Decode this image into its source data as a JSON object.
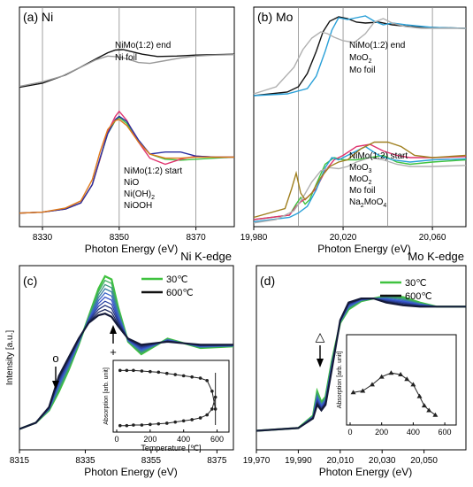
{
  "chart_data": [
    {
      "id": "a",
      "type": "line",
      "panel_label": "(a) Ni",
      "xlabel": "Photon Energy (eV)",
      "ticks": [
        "8330",
        "8350",
        "8370"
      ],
      "xlim": [
        8324,
        8380
      ],
      "upper_legend": [
        {
          "text": "NiMo(1:2) end",
          "color": "#111111"
        },
        {
          "text": "Ni foil",
          "color": "#9a9a9a"
        }
      ],
      "lower_legend": [
        {
          "text": "NiMo(1:2) start",
          "color": "#3fc23f"
        },
        {
          "text": "NiO",
          "color": "#e0336e"
        },
        {
          "text": "Ni(OH)",
          "sub": "2",
          "color": "#2b2fa0"
        },
        {
          "text": "NiOOH",
          "color": "#e07a1a"
        }
      ],
      "gridlines": [
        8330,
        8350,
        8370
      ],
      "series": [
        {
          "color": "#111111",
          "x": [
            8324,
            8330,
            8336,
            8340,
            8344,
            8347,
            8349,
            8351,
            8353,
            8356,
            8360,
            8365,
            8370,
            8375,
            8380
          ],
          "y": [
            0.18,
            0.27,
            0.45,
            0.62,
            0.8,
            0.93,
            0.99,
            1.0,
            0.96,
            0.9,
            0.85,
            0.86,
            0.88,
            0.89,
            0.9
          ]
        },
        {
          "color": "#9a9a9a",
          "x": [
            8324,
            8330,
            8335,
            8338,
            8341,
            8344,
            8347,
            8350,
            8352,
            8355,
            8358,
            8362,
            8366,
            8370,
            8375,
            8380
          ],
          "y": [
            0.2,
            0.3,
            0.42,
            0.54,
            0.66,
            0.78,
            0.86,
            0.84,
            0.8,
            0.72,
            0.7,
            0.76,
            0.82,
            0.86,
            0.88,
            0.89
          ]
        },
        {
          "color": "#3fc23f",
          "x": [
            8324,
            8330,
            8336,
            8340,
            8343,
            8345,
            8347,
            8349,
            8350,
            8352,
            8355,
            8358,
            8362,
            8366,
            8370,
            8375,
            8380
          ],
          "y": [
            0.02,
            0.03,
            0.06,
            0.12,
            0.3,
            0.55,
            0.8,
            0.93,
            0.96,
            0.9,
            0.72,
            0.6,
            0.55,
            0.54,
            0.55,
            0.56,
            0.57
          ]
        },
        {
          "color": "#e0336e",
          "x": [
            8324,
            8330,
            8336,
            8340,
            8343,
            8345,
            8347,
            8349,
            8350,
            8352,
            8355,
            8358,
            8362,
            8366,
            8370,
            8375,
            8380
          ],
          "y": [
            0.02,
            0.03,
            0.06,
            0.12,
            0.3,
            0.55,
            0.82,
            0.97,
            1.02,
            0.93,
            0.72,
            0.56,
            0.5,
            0.55,
            0.58,
            0.57,
            0.57
          ]
        },
        {
          "color": "#2b2fa0",
          "x": [
            8324,
            8330,
            8336,
            8340,
            8343,
            8345,
            8347,
            8349,
            8350,
            8352,
            8355,
            8358,
            8362,
            8366,
            8370,
            8375,
            8380
          ],
          "y": [
            0.02,
            0.03,
            0.06,
            0.12,
            0.3,
            0.56,
            0.8,
            0.94,
            0.97,
            0.92,
            0.74,
            0.6,
            0.62,
            0.62,
            0.58,
            0.57,
            0.57
          ]
        },
        {
          "color": "#e07a1a",
          "x": [
            8324,
            8330,
            8336,
            8340,
            8343,
            8345,
            8347,
            8349,
            8350,
            8352,
            8355,
            8358,
            8362,
            8366,
            8370,
            8375,
            8380
          ],
          "y": [
            0.02,
            0.03,
            0.07,
            0.14,
            0.35,
            0.62,
            0.84,
            0.93,
            0.94,
            0.88,
            0.72,
            0.6,
            0.56,
            0.56,
            0.57,
            0.57,
            0.57
          ]
        }
      ]
    },
    {
      "id": "b",
      "type": "line",
      "panel_label": "(b) Mo",
      "xlabel": "Photon Energy (eV)",
      "ticks": [
        "19,980",
        "20,020",
        "20,060"
      ],
      "xlim": [
        19980,
        20075
      ],
      "upper_legend": [
        {
          "text": "NiMo(1:2) end",
          "color": "#111111"
        },
        {
          "text": "MoO",
          "sub": "2",
          "color": "#2aa0d8"
        },
        {
          "text": "Mo foil",
          "color": "#b0b0b0"
        }
      ],
      "lower_legend": [
        {
          "text": "NiMo(1:2) start",
          "color": "#3fc23f"
        },
        {
          "text": "MoO",
          "sub": "3",
          "color": "#e0336e"
        },
        {
          "text": "MoO",
          "sub": "2",
          "color": "#2aa0d8"
        },
        {
          "text": "Mo foil",
          "color": "#b0b0b0"
        },
        {
          "text": "Na",
          "sub": "2",
          "tail": "MoO",
          "sub2": "4",
          "color": "#a08020"
        }
      ],
      "gridlines": [
        20000,
        20020,
        20040,
        20060
      ],
      "series": [
        {
          "color": "#111111",
          "x": [
            19980,
            19995,
            20000,
            20004,
            20008,
            20011,
            20014,
            20018,
            20022,
            20026,
            20030,
            20036,
            20042,
            20050,
            20060,
            20075
          ],
          "y": [
            0.1,
            0.14,
            0.2,
            0.35,
            0.6,
            0.82,
            0.94,
            0.99,
            0.97,
            0.93,
            0.92,
            0.93,
            0.9,
            0.88,
            0.87,
            0.86
          ]
        },
        {
          "color": "#2aa0d8",
          "x": [
            19980,
            19995,
            20004,
            20008,
            20012,
            20015,
            20018,
            20022,
            20026,
            20030,
            20034,
            20038,
            20042,
            20048,
            20060,
            20075
          ],
          "y": [
            0.1,
            0.12,
            0.18,
            0.32,
            0.6,
            0.84,
            0.98,
            0.96,
            0.98,
            1.0,
            0.94,
            0.9,
            0.92,
            0.9,
            0.87,
            0.86
          ]
        },
        {
          "color": "#b0b0b0",
          "x": [
            19980,
            19990,
            19998,
            20002,
            20006,
            20010,
            20013,
            20016,
            20020,
            20025,
            20030,
            20034,
            20038,
            20042,
            20048,
            20055,
            20065,
            20075
          ],
          "y": [
            0.12,
            0.2,
            0.42,
            0.62,
            0.75,
            0.82,
            0.8,
            0.76,
            0.72,
            0.7,
            0.8,
            0.93,
            0.97,
            0.92,
            0.88,
            0.86,
            0.86,
            0.86
          ]
        },
        {
          "color": "#3fc23f",
          "x": [
            19980,
            19996,
            19999,
            20001,
            20003,
            20005,
            20008,
            20012,
            20016,
            20020,
            20026,
            20032,
            20038,
            20044,
            20050,
            20060,
            20075
          ],
          "y": [
            0.08,
            0.12,
            0.22,
            0.28,
            0.22,
            0.26,
            0.4,
            0.58,
            0.64,
            0.62,
            0.62,
            0.64,
            0.66,
            0.6,
            0.58,
            0.6,
            0.62
          ]
        },
        {
          "color": "#e0336e",
          "x": [
            19980,
            19996,
            19999,
            20001,
            20004,
            20008,
            20012,
            20016,
            20020,
            20026,
            20032,
            20038,
            20044,
            20050,
            20060,
            20075
          ],
          "y": [
            0.08,
            0.12,
            0.2,
            0.24,
            0.28,
            0.36,
            0.52,
            0.62,
            0.66,
            0.74,
            0.76,
            0.7,
            0.66,
            0.64,
            0.64,
            0.65
          ]
        },
        {
          "color": "#2aa0d8",
          "x": [
            19980,
            19996,
            20000,
            20004,
            20008,
            20012,
            20015,
            20018,
            20022,
            20026,
            20030,
            20036,
            20042,
            20050,
            20060,
            20075
          ],
          "y": [
            0.06,
            0.1,
            0.14,
            0.2,
            0.35,
            0.55,
            0.64,
            0.62,
            0.66,
            0.7,
            0.74,
            0.66,
            0.62,
            0.6,
            0.62,
            0.63
          ]
        },
        {
          "color": "#b0b0b0",
          "x": [
            19980,
            19990,
            19998,
            20002,
            20006,
            20010,
            20014,
            20018,
            20022,
            20026,
            20032,
            20038,
            20044,
            20050,
            20060,
            20075
          ],
          "y": [
            0.05,
            0.08,
            0.16,
            0.28,
            0.42,
            0.52,
            0.55,
            0.54,
            0.56,
            0.6,
            0.64,
            0.62,
            0.58,
            0.56,
            0.56,
            0.57
          ]
        },
        {
          "color": "#a08020",
          "x": [
            19980,
            19994,
            19997,
            19999,
            20001,
            20003,
            20006,
            20010,
            20014,
            20018,
            20022,
            20028,
            20034,
            20040,
            20046,
            20052,
            20060,
            20075
          ],
          "y": [
            0.1,
            0.18,
            0.36,
            0.5,
            0.32,
            0.26,
            0.32,
            0.46,
            0.56,
            0.6,
            0.62,
            0.72,
            0.78,
            0.78,
            0.74,
            0.66,
            0.64,
            0.66
          ]
        }
      ]
    },
    {
      "id": "c",
      "type": "line",
      "panel_label": "(c)",
      "edge_title": "Ni K-edge",
      "xlabel": "Photon Energy (eV)",
      "ylabel": "Intensity [a.u.]",
      "ticks": [
        "8315",
        "8335",
        "8355",
        "8375"
      ],
      "xlim": [
        8315,
        8380
      ],
      "legend": [
        {
          "text": "30℃",
          "color": "#3fc23f"
        },
        {
          "text": "600℃",
          "color": "#111111"
        }
      ],
      "markers": {
        "o": "o",
        "plus": "+"
      },
      "series_start": {
        "x": [
          8315,
          8320,
          8324,
          8327,
          8330,
          8333,
          8336,
          8339,
          8341,
          8343,
          8345,
          8348,
          8352,
          8356,
          8360,
          8365,
          8370,
          8380
        ],
        "y": [
          0.02,
          0.06,
          0.14,
          0.26,
          0.4,
          0.56,
          0.74,
          0.92,
          1.0,
          0.98,
          0.8,
          0.58,
          0.5,
          0.55,
          0.6,
          0.57,
          0.54,
          0.55
        ]
      },
      "series_end": {
        "x": [
          8315,
          8320,
          8324,
          8327,
          8330,
          8333,
          8336,
          8339,
          8341,
          8343,
          8345,
          8348,
          8352,
          8356,
          8360,
          8365,
          8370,
          8380
        ],
        "y": [
          0.02,
          0.06,
          0.16,
          0.36,
          0.48,
          0.6,
          0.7,
          0.75,
          0.76,
          0.74,
          0.68,
          0.6,
          0.56,
          0.57,
          0.58,
          0.57,
          0.56,
          0.56
        ]
      },
      "steps": 9,
      "inset": {
        "xlabel": "Temperature [℃]",
        "ylabel": "Absorption [arb. unit]",
        "ticks": [
          "0",
          "200",
          "400",
          "600"
        ],
        "xlim": [
          0,
          650
        ],
        "upper": {
          "x": [
            20,
            60,
            100,
            150,
            200,
            250,
            300,
            350,
            400,
            450,
            500,
            540,
            570,
            590
          ],
          "y": [
            0.95,
            0.95,
            0.95,
            0.94,
            0.93,
            0.92,
            0.9,
            0.88,
            0.86,
            0.84,
            0.82,
            0.78,
            0.6,
            0.3
          ]
        },
        "lower": {
          "x": [
            20,
            60,
            100,
            150,
            200,
            250,
            300,
            350,
            400,
            450,
            500,
            540,
            570,
            590
          ],
          "y": [
            0.02,
            0.02,
            0.03,
            0.03,
            0.04,
            0.05,
            0.06,
            0.08,
            0.1,
            0.12,
            0.15,
            0.2,
            0.3,
            0.5
          ]
        }
      }
    },
    {
      "id": "d",
      "type": "line",
      "panel_label": "(d)",
      "edge_title": "Mo K-edge",
      "xlabel": "Photon Energy (eV)",
      "ticks": [
        "19,970",
        "19,990",
        "20,010",
        "20,030",
        "20,050"
      ],
      "xlim": [
        19970,
        20070
      ],
      "legend": [
        {
          "text": "30℃",
          "color": "#3fc23f"
        },
        {
          "text": "600℃",
          "color": "#111111"
        }
      ],
      "markers": {
        "triangle": "△"
      },
      "series_start": {
        "x": [
          19970,
          19990,
          19997,
          19999,
          20001,
          20003,
          20006,
          20010,
          20014,
          20020,
          20026,
          20032,
          20040,
          20048,
          20056,
          20070
        ],
        "y": [
          0.01,
          0.03,
          0.12,
          0.3,
          0.22,
          0.26,
          0.52,
          0.8,
          0.9,
          0.96,
          0.98,
          1.0,
          0.99,
          0.95,
          0.92,
          0.92
        ]
      },
      "series_end": {
        "x": [
          19970,
          19990,
          19997,
          19999,
          20001,
          20003,
          20006,
          20010,
          20014,
          20020,
          20026,
          20032,
          20040,
          20048,
          20056,
          20070
        ],
        "y": [
          0.01,
          0.03,
          0.1,
          0.2,
          0.16,
          0.2,
          0.46,
          0.82,
          0.95,
          0.98,
          0.98,
          0.95,
          0.93,
          0.92,
          0.92,
          0.92
        ]
      },
      "steps": 8,
      "inset": {
        "ticks": [
          "0",
          "200",
          "400",
          "600"
        ],
        "xlim": [
          0,
          650
        ],
        "ylabel": "Absorption [arb. unit]",
        "points": {
          "x": [
            20,
            80,
            140,
            200,
            260,
            320,
            360,
            400,
            440,
            470,
            500,
            540
          ],
          "y": [
            0.35,
            0.37,
            0.45,
            0.55,
            0.6,
            0.58,
            0.52,
            0.45,
            0.3,
            0.18,
            0.12,
            0.06
          ]
        }
      }
    }
  ]
}
